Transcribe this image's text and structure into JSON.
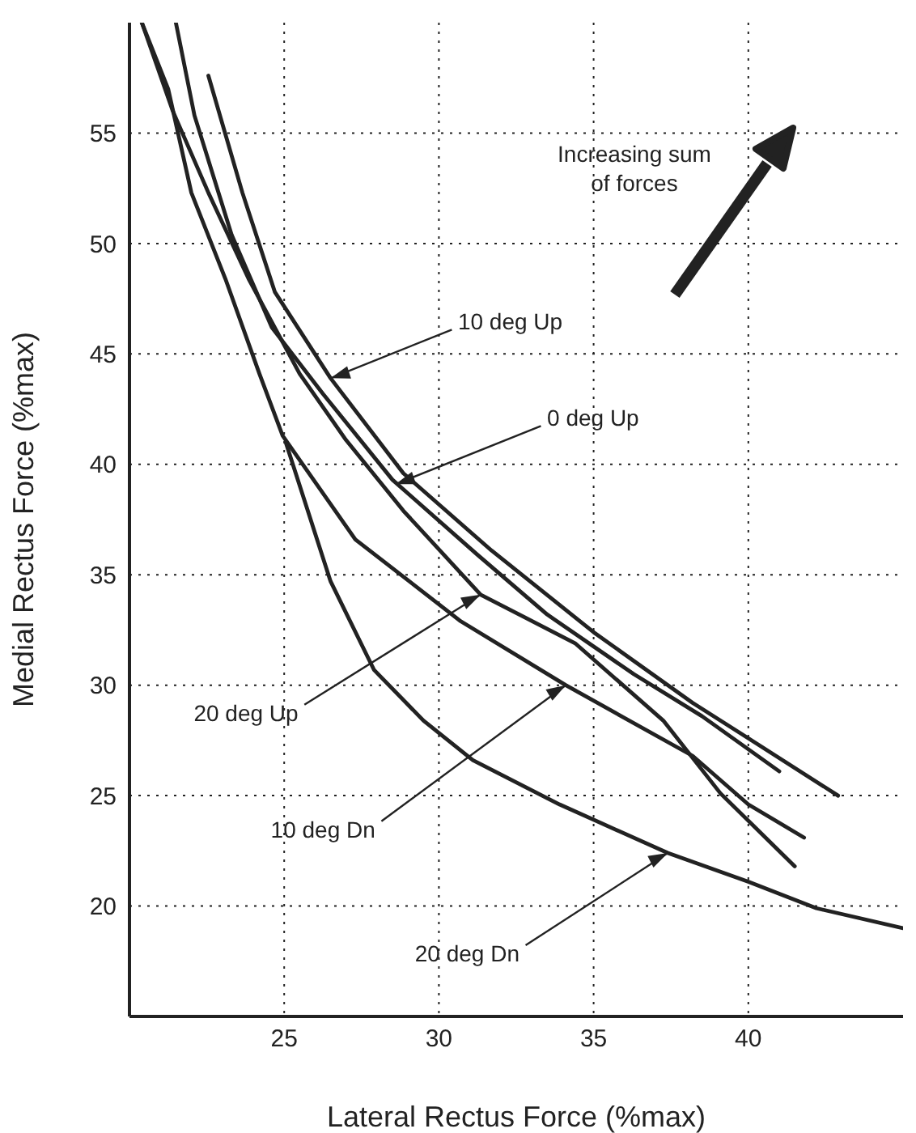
{
  "chart_data": {
    "type": "line",
    "xlabel": "Lateral Rectus Force (%max)",
    "ylabel": "Medial Rectus Force (%max)",
    "xlim": [
      20,
      45
    ],
    "ylim": [
      15,
      60
    ],
    "xticks": [
      25,
      30,
      35,
      40
    ],
    "yticks": [
      20,
      25,
      30,
      35,
      40,
      45,
      50,
      55
    ],
    "grid": true,
    "legend": false,
    "marker": "none",
    "line_style": "solid",
    "series": [
      {
        "color": "#222222",
        "x": [
          22.55,
          23.65,
          24.7,
          26.5,
          28.85,
          31.7,
          35.0,
          38.2,
          40.0,
          42.9
        ],
        "values": [
          57.6,
          52.3,
          47.8,
          43.9,
          39.6,
          36.1,
          32.4,
          29.2,
          27.6,
          25.0
        ]
      },
      {
        "color": "#222222",
        "x": [
          21.5,
          22.1,
          23.3,
          24.6,
          26.25,
          28.5,
          31.25,
          33.5,
          36.3,
          38.5,
          41.0
        ],
        "values": [
          60,
          55.8,
          50.4,
          46.2,
          43.2,
          39.3,
          35.9,
          33.2,
          30.5,
          28.6,
          26.1
        ]
      },
      {
        "color": "#222222",
        "x": [
          20.4,
          21.4,
          22.55,
          23.85,
          25.5,
          27.0,
          28.85,
          31.35,
          34.4,
          37.25,
          39.1,
          41.5
        ],
        "values": [
          60,
          56.0,
          52.3,
          48.4,
          44.1,
          41.1,
          37.9,
          34.1,
          31.9,
          28.4,
          25.1,
          21.8
        ]
      },
      {
        "color": "#222222",
        "x": [
          20.4,
          21.25,
          22.0,
          23.1,
          24.2,
          24.95,
          27.3,
          30.7,
          34.1,
          38.2,
          40.0,
          41.8
        ],
        "values": [
          60,
          57.0,
          52.3,
          48.4,
          44.1,
          41.3,
          36.6,
          32.9,
          30.0,
          26.8,
          24.6,
          23.1
        ]
      },
      {
        "color": "#222222",
        "x": [
          25.05,
          26.5,
          27.9,
          29.5,
          31.1,
          33.9,
          37.4,
          40.0,
          42.2,
          45.0
        ],
        "values": [
          41.0,
          34.7,
          30.7,
          28.4,
          26.6,
          24.6,
          22.4,
          21.1,
          19.9,
          19.0
        ]
      }
    ],
    "annotations": [
      {
        "text": "10 deg Up",
        "x": 26.5,
        "y": 43.9
      },
      {
        "text": "0 deg Up",
        "x": 28.6,
        "y": 39.1
      },
      {
        "text": "20 deg Up",
        "x": 31.35,
        "y": 34.1
      },
      {
        "text": "10 deg Dn",
        "x": 34.1,
        "y": 30.0
      },
      {
        "text": "20 deg Dn",
        "x": 37.4,
        "y": 22.4
      },
      "Increasing sum of forces"
    ]
  }
}
